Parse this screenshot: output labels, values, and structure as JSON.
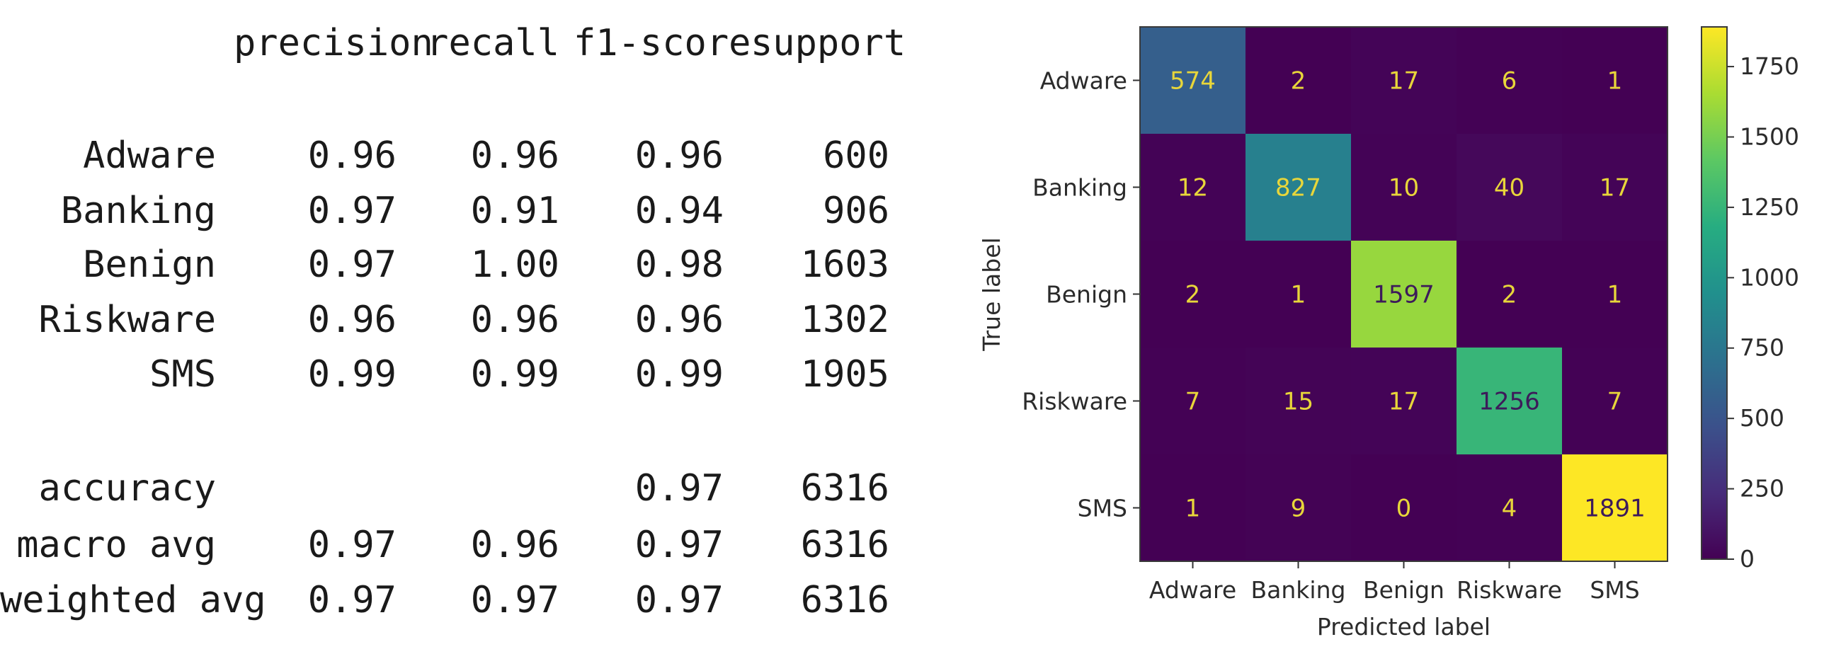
{
  "report": {
    "headers": {
      "precision": "precision",
      "recall": "recall",
      "f1": "f1-score",
      "support": "support"
    },
    "class_rows": [
      {
        "label": "Adware",
        "precision": "0.96",
        "recall": "0.96",
        "f1": "0.96",
        "support": "600"
      },
      {
        "label": "Banking",
        "precision": "0.97",
        "recall": "0.91",
        "f1": "0.94",
        "support": "906"
      },
      {
        "label": "Benign",
        "precision": "0.97",
        "recall": "1.00",
        "f1": "0.98",
        "support": "1603"
      },
      {
        "label": "Riskware",
        "precision": "0.96",
        "recall": "0.96",
        "f1": "0.96",
        "support": "1302"
      },
      {
        "label": "SMS",
        "precision": "0.99",
        "recall": "0.99",
        "f1": "0.99",
        "support": "1905"
      }
    ],
    "summary_rows": [
      {
        "label": "accuracy",
        "precision": "",
        "recall": "",
        "f1": "0.97",
        "support": "6316"
      },
      {
        "label": "macro avg",
        "precision": "0.97",
        "recall": "0.96",
        "f1": "0.97",
        "support": "6316"
      },
      {
        "label": "weighted avg",
        "precision": "0.97",
        "recall": "0.97",
        "f1": "0.97",
        "support": "6316"
      }
    ]
  },
  "chart_data": {
    "type": "heatmap",
    "colormap": "viridis",
    "xlabel": "Predicted label",
    "ylabel": "True label",
    "x_categories": [
      "Adware",
      "Banking",
      "Benign",
      "Riskware",
      "SMS"
    ],
    "y_categories": [
      "Adware",
      "Banking",
      "Benign",
      "Riskware",
      "SMS"
    ],
    "values": [
      [
        574,
        2,
        17,
        6,
        1
      ],
      [
        12,
        827,
        10,
        40,
        17
      ],
      [
        2,
        1,
        1597,
        2,
        1
      ],
      [
        7,
        15,
        17,
        1256,
        7
      ],
      [
        1,
        9,
        0,
        4,
        1891
      ]
    ],
    "colorbar": {
      "min": 0,
      "max": 1891,
      "ticks": [
        0,
        250,
        500,
        750,
        1000,
        1250,
        1500,
        1750
      ]
    },
    "grid": false
  }
}
